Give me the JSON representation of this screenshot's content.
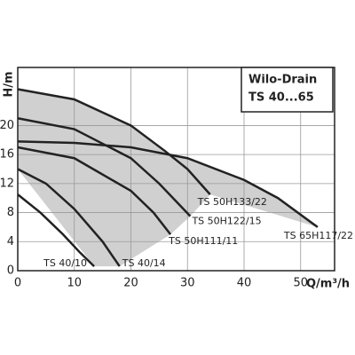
{
  "chart_data": {
    "type": "line",
    "legend_title": "Wilo-Drain",
    "legend_subtitle": "TS 40...65",
    "x_label": "Q/m³/h",
    "y_label": "H/m",
    "xlim": [
      0,
      56
    ],
    "ylim": [
      0,
      28
    ],
    "xticks": [
      0,
      10,
      20,
      30,
      40,
      50
    ],
    "yticks": [
      0,
      4,
      8,
      12,
      16,
      20
    ],
    "grid": true,
    "fill_color": "#d0d0d0",
    "line_color": "#222222",
    "series": [
      {
        "name": "TS 65H117/22",
        "x": [
          0,
          10,
          20,
          30,
          40,
          46,
          53
        ],
        "values": [
          17.8,
          17.6,
          17,
          15.5,
          12.5,
          10,
          6
        ]
      },
      {
        "name": "TS 50H133/22",
        "x": [
          0,
          10,
          20,
          26,
          30,
          34
        ],
        "values": [
          25,
          23.6,
          20,
          16.5,
          14,
          10.5
        ]
      },
      {
        "name": "TS 50H122/15",
        "x": [
          0,
          10,
          20,
          25,
          30.5
        ],
        "values": [
          21,
          19.5,
          15.5,
          12,
          7.5
        ]
      },
      {
        "name": "TS 50H111/11",
        "x": [
          0,
          10,
          20,
          24,
          27
        ],
        "values": [
          17,
          15.5,
          11,
          8,
          5
        ]
      },
      {
        "name": "TS 40/14",
        "x": [
          0,
          5,
          10,
          15,
          18
        ],
        "values": [
          14,
          12,
          8.5,
          4,
          0.6
        ]
      },
      {
        "name": "TS 40/10",
        "x": [
          0,
          4,
          8,
          11,
          13.5
        ],
        "values": [
          10.5,
          8,
          5,
          2.5,
          0.6
        ]
      }
    ]
  }
}
